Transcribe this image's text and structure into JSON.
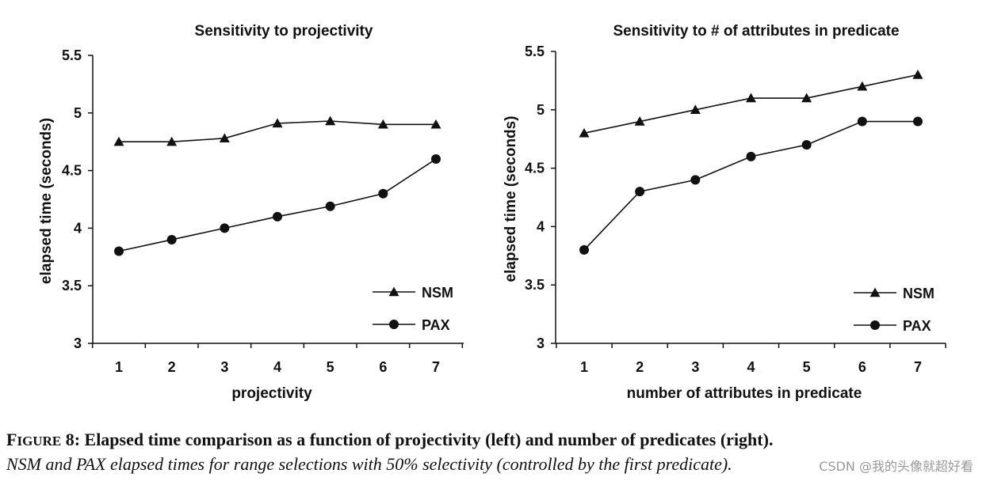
{
  "chart_data": [
    {
      "type": "line",
      "title": "Sensitivity to projectivity",
      "xlabel": "projectivity",
      "ylabel": "elapsed time (seconds)",
      "categories": [
        "1",
        "2",
        "3",
        "4",
        "5",
        "6",
        "7"
      ],
      "ylim": [
        3,
        5.5
      ],
      "yticks": [
        "3",
        "3.5",
        "4",
        "4.5",
        "5",
        "5.5"
      ],
      "legend_position": "bottom-right",
      "series": [
        {
          "name": "NSM",
          "marker": "triangle",
          "values": [
            4.75,
            4.75,
            4.78,
            4.91,
            4.93,
            4.9,
            4.9
          ]
        },
        {
          "name": "PAX",
          "marker": "circle",
          "values": [
            3.8,
            3.9,
            4.0,
            4.1,
            4.19,
            4.3,
            4.6
          ]
        }
      ]
    },
    {
      "type": "line",
      "title": "Sensitivity to # of attributes in predicate",
      "xlabel": "number of attributes in predicate",
      "ylabel": "elapsed time (seconds)",
      "categories": [
        "1",
        "2",
        "3",
        "4",
        "5",
        "6",
        "7"
      ],
      "ylim": [
        3,
        5.5
      ],
      "yticks": [
        "3",
        "3.5",
        "4",
        "4.5",
        "5",
        "5.5"
      ],
      "legend_position": "bottom-right",
      "series": [
        {
          "name": "NSM",
          "marker": "triangle",
          "values": [
            4.8,
            4.9,
            5.0,
            5.1,
            5.1,
            5.2,
            5.3
          ]
        },
        {
          "name": "PAX",
          "marker": "circle",
          "values": [
            3.8,
            4.3,
            4.4,
            4.6,
            4.7,
            4.9,
            4.9
          ]
        }
      ]
    }
  ],
  "caption": {
    "figure_first": "F",
    "figure_rest": "IGURE",
    "line1_rest": " 8: Elapsed time comparison as a function of projectivity (left) and number of predicates (right).",
    "line2": "NSM and PAX elapsed times for range selections with 50% selectivity (controlled by the first predicate)."
  },
  "watermark": "CSDN @我的头像就超好看"
}
